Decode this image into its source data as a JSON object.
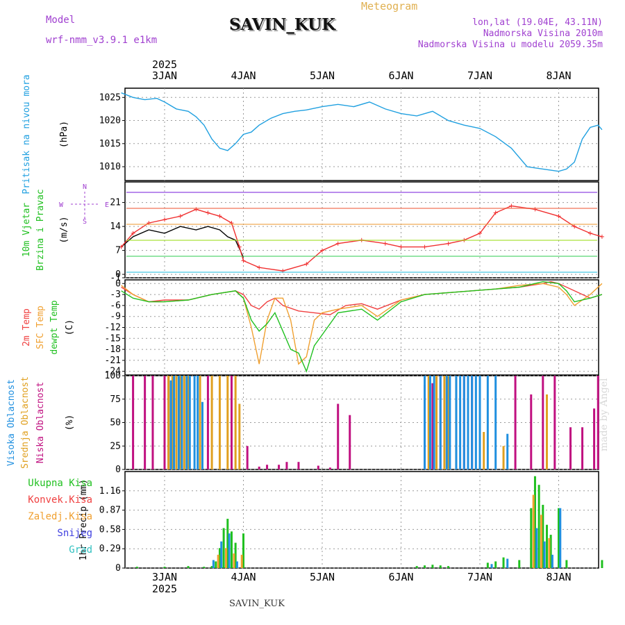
{
  "header": {
    "title": "SAVIN_KUK",
    "subtitle": "Meteogram",
    "model_label": "Model",
    "model_value": "wrf-nmm_v3.9.1 e1km",
    "location_lines": [
      "lon,lat (19.04E, 43.11N)",
      "Nadmorska Visina 2010m",
      "Nadmorska Visina u modelu 2059.35m"
    ]
  },
  "footer": {
    "station": "SAVIN_KUK",
    "credit": "made by Angel"
  },
  "colors": {
    "pressure": "#20a0e0",
    "temp2m": "#f04040",
    "sfc": "#f0a030",
    "dewpt": "#20c020",
    "high_cloud": "#2090e0",
    "mid_cloud": "#e0a020",
    "low_cloud": "#c01080",
    "wind_mean": "#000000",
    "gust": "#f03030",
    "wind_dir": "#a040d0"
  },
  "time_axis": {
    "year": "2025",
    "days": [
      "3JAN",
      "4JAN",
      "5JAN",
      "6JAN",
      "7JAN",
      "8JAN"
    ]
  },
  "chart_data": [
    {
      "type": "line",
      "id": "pressure",
      "ylabel": [
        "Pritisak na nivou mora",
        "(hPa)"
      ],
      "ylim": [
        1007,
        1027
      ],
      "yticks": [
        1010,
        1015,
        1020,
        1025
      ],
      "x_unit": "days since 2025-01-03 00:00",
      "series": [
        {
          "key": "pressure",
          "x": [
            -0.55,
            -0.4,
            -0.25,
            -0.1,
            0.0,
            0.15,
            0.3,
            0.4,
            0.5,
            0.6,
            0.7,
            0.8,
            0.9,
            1.0,
            1.1,
            1.2,
            1.35,
            1.5,
            1.65,
            1.8,
            2.0,
            2.2,
            2.4,
            2.6,
            2.8,
            3.0,
            3.2,
            3.4,
            3.6,
            3.8,
            4.0,
            4.2,
            4.4,
            4.6,
            4.8,
            5.0,
            5.1,
            5.2,
            5.3,
            5.4,
            5.5,
            5.55
          ],
          "values": [
            1026,
            1025,
            1024.5,
            1024.8,
            1024,
            1022.5,
            1022,
            1020.8,
            1019,
            1016,
            1014,
            1013.5,
            1015,
            1017,
            1017.5,
            1019,
            1020.5,
            1021.5,
            1022,
            1022.3,
            1023,
            1023.5,
            1023,
            1024,
            1022.5,
            1021.5,
            1021,
            1022,
            1020,
            1019,
            1018.3,
            1016.5,
            1014,
            1010,
            1009.5,
            1009,
            1009.5,
            1011,
            1016,
            1018.5,
            1019,
            1018
          ]
        }
      ]
    },
    {
      "type": "line",
      "id": "wind",
      "ylabel": [
        "10m Vjetar",
        "Brzina i Pravac",
        "(m/s)"
      ],
      "ylim": [
        -1,
        27
      ],
      "yticks": [
        -1,
        0,
        7,
        14,
        21
      ],
      "series": [
        {
          "key": "wind_mean",
          "x": [
            -0.55,
            -0.4,
            -0.2,
            0.0,
            0.2,
            0.4,
            0.55,
            0.7,
            0.8,
            0.9,
            1.0
          ],
          "values": [
            8,
            11,
            13,
            12,
            14,
            13,
            14,
            13,
            11,
            10,
            5
          ]
        },
        {
          "key": "gust",
          "x": [
            -0.55,
            -0.4,
            -0.2,
            0.0,
            0.2,
            0.4,
            0.55,
            0.7,
            0.85,
            0.95,
            1.0,
            1.2,
            1.5,
            1.8,
            2.0,
            2.2,
            2.5,
            2.8,
            3.0,
            3.3,
            3.6,
            3.8,
            4.0,
            4.2,
            4.4,
            4.7,
            5.0,
            5.2,
            5.4,
            5.55
          ],
          "values": [
            8,
            12,
            15,
            16,
            17,
            19,
            18,
            17,
            15,
            8,
            4,
            2,
            1,
            3,
            7,
            9,
            10,
            9,
            8,
            8,
            9,
            10,
            12,
            18,
            20,
            19,
            17,
            14,
            12,
            11
          ]
        }
      ],
      "compass": [
        "N",
        "W",
        "E",
        "S"
      ]
    },
    {
      "type": "line",
      "id": "temperature",
      "ylabel": [
        "2m Temp",
        "SFC Temp",
        "dewpt Temp",
        "(C)"
      ],
      "ylim": [
        -25,
        1
      ],
      "yticks": [
        0,
        -3,
        -6,
        -9,
        -12,
        -15,
        -18,
        -21,
        -24
      ],
      "series": [
        {
          "key": "temp2m",
          "x": [
            -0.55,
            -0.4,
            -0.2,
            0.0,
            0.3,
            0.6,
            0.9,
            1.0,
            1.1,
            1.2,
            1.3,
            1.4,
            1.5,
            1.7,
            1.9,
            2.1,
            2.3,
            2.5,
            2.7,
            3.0,
            3.3,
            3.6,
            3.9,
            4.2,
            4.5,
            4.8,
            4.9,
            5.0,
            5.1,
            5.2,
            5.4,
            5.55
          ],
          "values": [
            -1,
            -3,
            -5,
            -4.5,
            -4.5,
            -3,
            -2,
            -3,
            -6,
            -7,
            -5,
            -4,
            -6,
            -7.5,
            -8,
            -8.5,
            -6,
            -5.5,
            -7,
            -4.5,
            -3,
            -2.5,
            -2,
            -1.5,
            -1,
            0,
            0.5,
            0,
            -1,
            -2,
            -4,
            -3
          ]
        },
        {
          "key": "sfc",
          "x": [
            -0.55,
            -0.4,
            -0.2,
            0.0,
            0.3,
            0.6,
            0.9,
            1.0,
            1.1,
            1.2,
            1.3,
            1.4,
            1.5,
            1.6,
            1.7,
            1.8,
            1.9,
            2.0,
            2.2,
            2.5,
            2.7,
            3.0,
            3.3,
            3.6,
            3.9,
            4.2,
            4.5,
            4.8,
            5.0,
            5.1,
            5.2,
            5.4,
            5.55
          ],
          "values": [
            -0.5,
            -3,
            -5,
            -5,
            -4.5,
            -3,
            -2,
            -4,
            -12,
            -22,
            -10,
            -4,
            -4,
            -10,
            -22,
            -20,
            -10,
            -8,
            -7,
            -6,
            -9,
            -4.5,
            -3,
            -2.5,
            -2,
            -1.5,
            -0.5,
            0,
            -1,
            -3,
            -6,
            -3,
            0
          ]
        },
        {
          "key": "dewpt",
          "x": [
            -0.55,
            -0.4,
            -0.2,
            0.0,
            0.3,
            0.6,
            0.9,
            1.0,
            1.1,
            1.2,
            1.3,
            1.4,
            1.5,
            1.6,
            1.7,
            1.8,
            1.9,
            2.0,
            2.2,
            2.5,
            2.7,
            3.0,
            3.3,
            3.6,
            3.9,
            4.2,
            4.5,
            4.8,
            5.0,
            5.1,
            5.2,
            5.4,
            5.55
          ],
          "values": [
            -2,
            -4,
            -5,
            -5,
            -4.5,
            -3,
            -2,
            -4,
            -10,
            -13,
            -11,
            -8,
            -13,
            -18,
            -19,
            -24,
            -17,
            -14,
            -8,
            -7,
            -10,
            -5,
            -3,
            -2.5,
            -2,
            -1.5,
            -1,
            0.5,
            0,
            -2,
            -5,
            -4,
            -3
          ]
        }
      ]
    },
    {
      "type": "bar",
      "id": "cloud",
      "ylabel": [
        "Visoka Oblacnost",
        "Srednja Oblacnost",
        "Niska Oblacnost",
        "(%)"
      ],
      "ylim": [
        0,
        100
      ],
      "yticks": [
        0,
        25,
        50,
        75,
        100
      ],
      "series": [
        {
          "key": "low_cloud",
          "x": [
            -0.4,
            -0.25,
            -0.15,
            0.0,
            0.05,
            0.55,
            0.85,
            1.05,
            1.2,
            1.3,
            1.45,
            1.55,
            1.7,
            1.95,
            2.1,
            2.2,
            2.35,
            3.3,
            3.4,
            3.5,
            3.8,
            3.9,
            4.45,
            4.65,
            4.8,
            4.95,
            5.15,
            5.3,
            5.45,
            5.5
          ],
          "values": [
            100,
            100,
            100,
            100,
            100,
            100,
            100,
            25,
            3,
            5,
            5,
            8,
            8,
            4,
            2,
            70,
            58,
            90,
            92,
            100,
            100,
            100,
            100,
            80,
            100,
            100,
            45,
            45,
            65,
            100
          ]
        },
        {
          "key": "mid_cloud",
          "x": [
            0.05,
            0.1,
            0.15,
            0.2,
            0.25,
            0.3,
            0.45,
            0.6,
            0.7,
            0.8,
            0.9,
            0.95,
            3.35,
            3.45,
            3.55,
            3.6,
            3.7,
            4.05,
            4.3,
            4.85
          ],
          "values": [
            100,
            100,
            100,
            100,
            100,
            100,
            100,
            100,
            100,
            100,
            100,
            70,
            100,
            100,
            100,
            100,
            100,
            40,
            25,
            80
          ]
        },
        {
          "key": "high_cloud",
          "x": [
            0.08,
            0.12,
            0.18,
            0.22,
            0.28,
            0.32,
            0.38,
            0.42,
            0.48,
            3.3,
            3.37,
            3.42,
            3.5,
            3.58,
            3.62,
            3.7,
            3.75,
            3.8,
            3.85,
            3.9,
            3.95,
            4.0,
            4.1,
            4.2,
            4.35
          ],
          "values": [
            95,
            100,
            100,
            100,
            100,
            100,
            100,
            100,
            72,
            100,
            100,
            100,
            100,
            100,
            100,
            100,
            100,
            100,
            100,
            100,
            100,
            100,
            100,
            100,
            38
          ]
        }
      ]
    },
    {
      "type": "bar",
      "id": "precip",
      "ylabel": [
        "1hr Precip (mm)"
      ],
      "legend": [
        "Ukupna Kisa",
        "Konvek.Kisa",
        "Zaledj.Kisa",
        "Snijeg",
        "Grad"
      ],
      "ylim": [
        0,
        1.45
      ],
      "yticks": [
        0,
        0.29,
        0.58,
        0.87,
        1.16
      ],
      "series": [
        {
          "key": "dewpt",
          "x": [
            -0.35,
            0.0,
            0.3,
            0.5,
            0.6,
            0.65,
            0.7,
            0.75,
            0.8,
            0.85,
            0.9,
            1.0,
            3.2,
            3.3,
            3.4,
            3.5,
            3.6,
            4.1,
            4.2,
            4.3,
            4.5,
            4.65,
            4.7,
            4.75,
            4.8,
            4.85,
            4.9,
            5.0,
            5.1,
            5.55
          ],
          "values": [
            0.02,
            0.02,
            0.03,
            0.02,
            0.03,
            0.1,
            0.3,
            0.6,
            0.74,
            0.55,
            0.38,
            0.52,
            0.03,
            0.04,
            0.05,
            0.04,
            0.03,
            0.08,
            0.1,
            0.16,
            0.12,
            0.9,
            1.38,
            1.25,
            0.95,
            0.65,
            0.5,
            0.9,
            0.12,
            0.12
          ]
        },
        {
          "key": "high_cloud",
          "x": [
            0.62,
            0.72,
            0.82,
            0.92,
            4.15,
            4.35,
            4.72,
            4.82,
            4.92,
            5.02
          ],
          "values": [
            0.12,
            0.4,
            0.52,
            0.1,
            0.06,
            0.14,
            0.6,
            0.4,
            0.2,
            0.9
          ]
        },
        {
          "key": "sfc",
          "x": [
            0.68,
            0.78,
            0.88,
            0.98,
            4.68,
            4.78,
            4.88
          ],
          "values": [
            0.2,
            0.3,
            0.22,
            0.2,
            1.1,
            0.8,
            0.45
          ]
        }
      ]
    }
  ]
}
